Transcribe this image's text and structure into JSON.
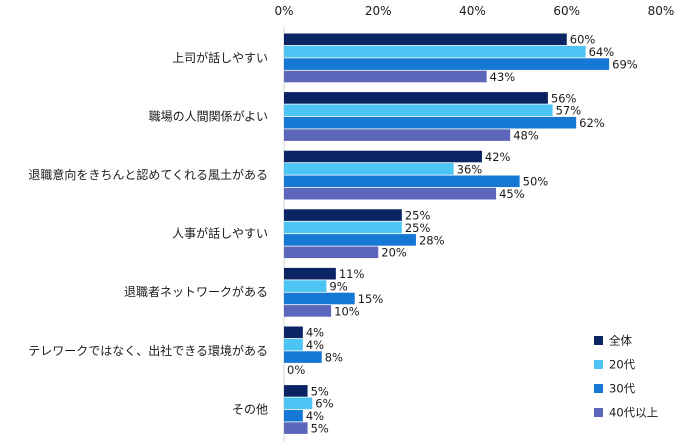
{
  "chart_data": {
    "type": "bar",
    "orientation": "horizontal",
    "title": "",
    "xlabel": "",
    "ylabel": "",
    "xlim": [
      0,
      80
    ],
    "tick_values": [
      0,
      20,
      40,
      60,
      80
    ],
    "tick_labels": [
      "0%",
      "20%",
      "40%",
      "60%",
      "80%"
    ],
    "categories": [
      "上司が話しやすい",
      "職場の人間関係がよい",
      "退職意向をきちんと認めてくれる風土がある",
      "人事が話しやすい",
      "退職者ネットワークがある",
      "テレワークではなく、出社できる環境がある",
      "その他"
    ],
    "series": [
      {
        "name": "全体",
        "color": "#0b2463",
        "values": [
          60,
          56,
          42,
          25,
          11,
          4,
          5
        ]
      },
      {
        "name": "20代",
        "color": "#4cc5f4",
        "values": [
          64,
          57,
          36,
          25,
          9,
          4,
          6
        ]
      },
      {
        "name": "30代",
        "color": "#1478d4",
        "values": [
          69,
          62,
          50,
          28,
          15,
          8,
          4
        ]
      },
      {
        "name": "40代以上",
        "color": "#5c66ba",
        "values": [
          43,
          48,
          45,
          20,
          10,
          0,
          5
        ]
      }
    ],
    "value_suffix": "%",
    "grid": false,
    "legend_position": "bottom-right"
  }
}
